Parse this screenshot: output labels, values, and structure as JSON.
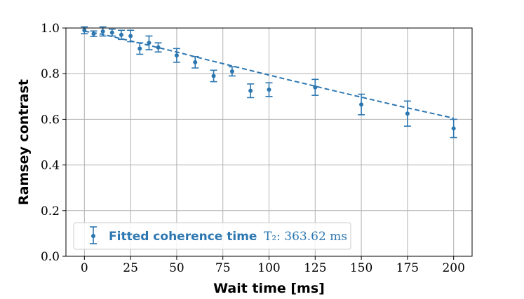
{
  "chart_data": {
    "type": "scatter",
    "xlabel": "Wait time [ms]",
    "ylabel": "Ramsey contrast",
    "xlim": [
      -10,
      210
    ],
    "ylim": [
      0.0,
      1.0
    ],
    "xticks": [
      0,
      25,
      50,
      75,
      100,
      125,
      150,
      175,
      200
    ],
    "yticks": [
      0.0,
      0.2,
      0.4,
      0.6,
      0.8,
      1.0
    ],
    "xtick_labels": [
      "0",
      "25",
      "50",
      "75",
      "100",
      "125",
      "150",
      "175",
      "200"
    ],
    "ytick_labels": [
      "0.0",
      "0.2",
      "0.4",
      "0.6",
      "0.8",
      "1.0"
    ],
    "grid": true,
    "legend_position": "lower-left",
    "color": "#2d77b1",
    "legend": {
      "label": "Fitted coherence time",
      "extra": "T₂: 363.62 ms"
    },
    "series": [
      {
        "kind": "errorbar",
        "x": [
          0,
          5,
          10,
          15,
          20,
          25,
          30,
          35,
          40,
          50,
          60,
          70,
          80,
          90,
          100,
          125,
          150,
          175,
          200
        ],
        "y": [
          0.99,
          0.975,
          0.985,
          0.98,
          0.97,
          0.965,
          0.91,
          0.935,
          0.915,
          0.88,
          0.85,
          0.79,
          0.81,
          0.725,
          0.73,
          0.74,
          0.665,
          0.625,
          0.56
        ],
        "yerr": [
          0.015,
          0.012,
          0.02,
          0.015,
          0.02,
          0.025,
          0.025,
          0.03,
          0.02,
          0.03,
          0.025,
          0.025,
          0.02,
          0.03,
          0.03,
          0.035,
          0.045,
          0.055,
          0.04
        ]
      },
      {
        "kind": "fit-line",
        "style": "dashed",
        "x": [
          0,
          10,
          20,
          30,
          40,
          50,
          60,
          70,
          80,
          90,
          100,
          110,
          120,
          130,
          140,
          150,
          160,
          170,
          180,
          190,
          200
        ],
        "y": [
          0.986,
          0.972,
          0.953,
          0.934,
          0.914,
          0.895,
          0.874,
          0.854,
          0.834,
          0.814,
          0.794,
          0.774,
          0.755,
          0.735,
          0.716,
          0.697,
          0.678,
          0.659,
          0.641,
          0.623,
          0.605
        ]
      }
    ]
  }
}
